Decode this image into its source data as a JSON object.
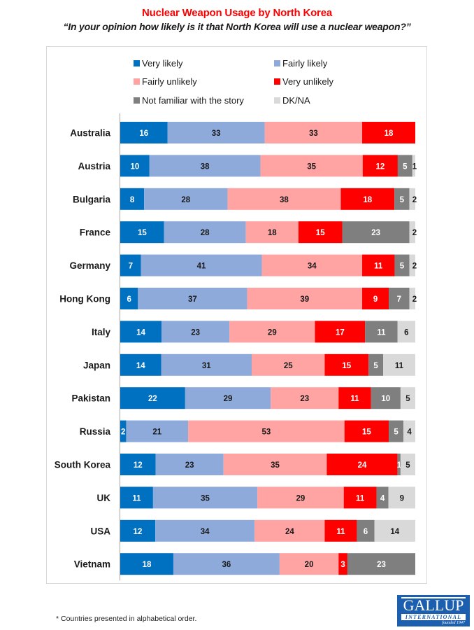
{
  "header": {
    "title": "Nuclear Weapon Usage by North Korea",
    "subtitle": "“In your opinion how likely is it that North Korea will use a nuclear weapon?”"
  },
  "footer": {
    "footnote": "* Countries presented in alphabetical order.",
    "logo": {
      "main": "GALLUP",
      "band": "INTERNATIONAL",
      "founded": "founded 1947",
      "color": "#1c5fae"
    }
  },
  "chart_data": {
    "type": "bar",
    "orientation": "horizontal",
    "stacked": true,
    "normalized": true,
    "title": "Nuclear Weapon Usage by North Korea",
    "subtitle": "“In your opinion how likely is it that North Korea will use a nuclear weapon?”",
    "xlabel": "",
    "ylabel": "",
    "unit": "%",
    "grid": false,
    "legend_position": "top",
    "categories": [
      "Australia",
      "Austria",
      "Bulgaria",
      "France",
      "Germany",
      "Hong Kong",
      "Italy",
      "Japan",
      "Pakistan",
      "Russia",
      "South Korea",
      "UK",
      "USA",
      "Vietnam"
    ],
    "series": [
      {
        "name": "Very likely",
        "color": "#0070c0",
        "label_color": "#ffffff",
        "values": [
          16,
          10,
          8,
          15,
          7,
          6,
          14,
          14,
          22,
          2,
          12,
          11,
          12,
          18
        ]
      },
      {
        "name": "Fairly likely",
        "color": "#8eaadb",
        "label_color": "#1a1a1a",
        "values": [
          33,
          38,
          28,
          28,
          41,
          37,
          23,
          31,
          29,
          21,
          23,
          35,
          34,
          36
        ]
      },
      {
        "name": "Fairly unlikely",
        "color": "#ffa3a3",
        "label_color": "#1a1a1a",
        "values": [
          33,
          35,
          38,
          18,
          34,
          39,
          29,
          25,
          23,
          53,
          35,
          29,
          24,
          20
        ]
      },
      {
        "name": "Very unlikely",
        "color": "#ff0000",
        "label_color": "#ffffff",
        "values": [
          18,
          12,
          18,
          15,
          11,
          9,
          17,
          15,
          11,
          15,
          24,
          11,
          11,
          3
        ]
      },
      {
        "name": "Not familiar with the story",
        "color": "#7f7f7f",
        "label_color": "#ffffff",
        "values": [
          0,
          5,
          5,
          23,
          5,
          7,
          11,
          5,
          10,
          5,
          1,
          4,
          6,
          23
        ]
      },
      {
        "name": "DK/NA",
        "color": "#d9d9d9",
        "label_color": "#1a1a1a",
        "values": [
          0,
          1,
          2,
          2,
          2,
          2,
          6,
          11,
          5,
          4,
          5,
          9,
          14,
          0
        ]
      }
    ]
  }
}
